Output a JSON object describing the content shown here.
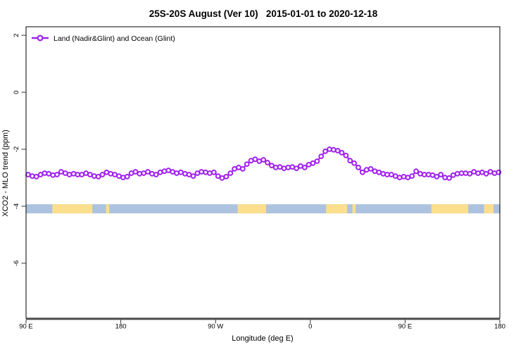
{
  "chart_data": {
    "type": "line",
    "title": "25S-20S August (Ver 10)   2015-01-01 to 2020-12-18",
    "xlabel": "Longitude (deg E)",
    "ylabel": "XCO2 - MLO trend (ppm)",
    "legend": [
      {
        "label": "Land (Nadir&Glint) and Ocean (Glint)",
        "color": "#A020F0",
        "marker": "open-circle"
      }
    ],
    "line_color": "#A020F0",
    "marker_fill": "#ffffff",
    "x_axis": {
      "range": [
        90,
        540
      ],
      "ticks": [
        {
          "value": 90,
          "label": "90 E"
        },
        {
          "value": 180,
          "label": "180"
        },
        {
          "value": 270,
          "label": "90 W"
        },
        {
          "value": 360,
          "label": "0"
        },
        {
          "value": 450,
          "label": "90 E"
        },
        {
          "value": 540,
          "label": "180"
        }
      ]
    },
    "y_axis": {
      "range": [
        -7.93,
        2.3
      ],
      "ticks": [
        {
          "value": 2,
          "label": "2"
        },
        {
          "value": 0,
          "label": "0"
        },
        {
          "value": -2,
          "label": "-2"
        },
        {
          "value": -4,
          "label": "-4"
        },
        {
          "value": -6,
          "label": "-6"
        }
      ]
    },
    "series": [
      {
        "name": "Land (Nadir&Glint) and Ocean (Glint)",
        "x_start": 92,
        "x_step": 3.92,
        "values": [
          -2.89,
          -2.94,
          -2.96,
          -2.89,
          -2.84,
          -2.86,
          -2.91,
          -2.89,
          -2.79,
          -2.84,
          -2.89,
          -2.86,
          -2.89,
          -2.89,
          -2.84,
          -2.89,
          -2.94,
          -2.96,
          -2.89,
          -2.81,
          -2.86,
          -2.89,
          -2.94,
          -2.99,
          -2.96,
          -2.84,
          -2.79,
          -2.86,
          -2.84,
          -2.79,
          -2.86,
          -2.89,
          -2.81,
          -2.77,
          -2.74,
          -2.79,
          -2.84,
          -2.81,
          -2.86,
          -2.89,
          -2.94,
          -2.84,
          -2.79,
          -2.81,
          -2.84,
          -2.81,
          -2.94,
          -3.01,
          -2.96,
          -2.84,
          -2.69,
          -2.64,
          -2.69,
          -2.52,
          -2.4,
          -2.35,
          -2.42,
          -2.37,
          -2.47,
          -2.57,
          -2.64,
          -2.62,
          -2.67,
          -2.64,
          -2.62,
          -2.67,
          -2.59,
          -2.64,
          -2.54,
          -2.49,
          -2.42,
          -2.25,
          -2.07,
          -2.0,
          -2.02,
          -2.05,
          -2.12,
          -2.22,
          -2.4,
          -2.49,
          -2.64,
          -2.81,
          -2.72,
          -2.69,
          -2.77,
          -2.81,
          -2.86,
          -2.89,
          -2.89,
          -2.94,
          -2.99,
          -2.96,
          -2.99,
          -2.94,
          -2.77,
          -2.86,
          -2.89,
          -2.89,
          -2.91,
          -2.96,
          -2.89,
          -2.99,
          -3.01,
          -2.91,
          -2.86,
          -2.84,
          -2.84,
          -2.86,
          -2.79,
          -2.84,
          -2.81,
          -2.86,
          -2.79,
          -2.84,
          -2.81
        ]
      }
    ],
    "map_strip": {
      "ocean_color": "#adc2de",
      "land_color": "#fcdf8d",
      "value_top": -3.93,
      "value_bottom": -4.25,
      "land_segments_lon": [
        [
          115,
          153
        ],
        [
          166,
          169
        ],
        [
          291,
          318
        ],
        [
          375,
          395
        ],
        [
          400,
          403
        ],
        [
          475,
          510
        ],
        [
          525,
          534
        ]
      ]
    }
  }
}
